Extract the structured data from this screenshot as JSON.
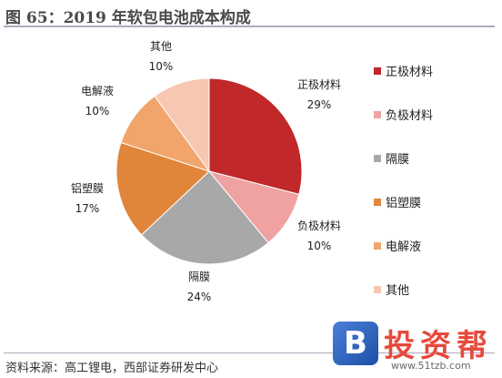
{
  "figure": {
    "title": "图 65：2019 年软包电池成本构成",
    "source": "资料来源：高工锂电，西部证券研发中心"
  },
  "watermark": {
    "logo_letter": "B",
    "brand": "投资帮",
    "url": "www.51tzb.com"
  },
  "chart_data": {
    "type": "pie",
    "title": "图 65：2019 年软包电池成本构成",
    "slices": [
      {
        "label": "正极材料",
        "value": 29,
        "value_label": "29%",
        "color": "#c0282a"
      },
      {
        "label": "负极材料",
        "value": 10,
        "value_label": "10%",
        "color": "#f0a2a2"
      },
      {
        "label": "隔膜",
        "value": 24,
        "value_label": "24%",
        "color": "#a8a8a8"
      },
      {
        "label": "铝塑膜",
        "value": 17,
        "value_label": "17%",
        "color": "#e0853a"
      },
      {
        "label": "电解液",
        "value": 10,
        "value_label": "10%",
        "color": "#f2a56a"
      },
      {
        "label": "其他",
        "value": 10,
        "value_label": "10%",
        "color": "#f6c8b2"
      }
    ],
    "start": "12 o'clock",
    "direction": "clockwise",
    "legend_position": "right"
  }
}
